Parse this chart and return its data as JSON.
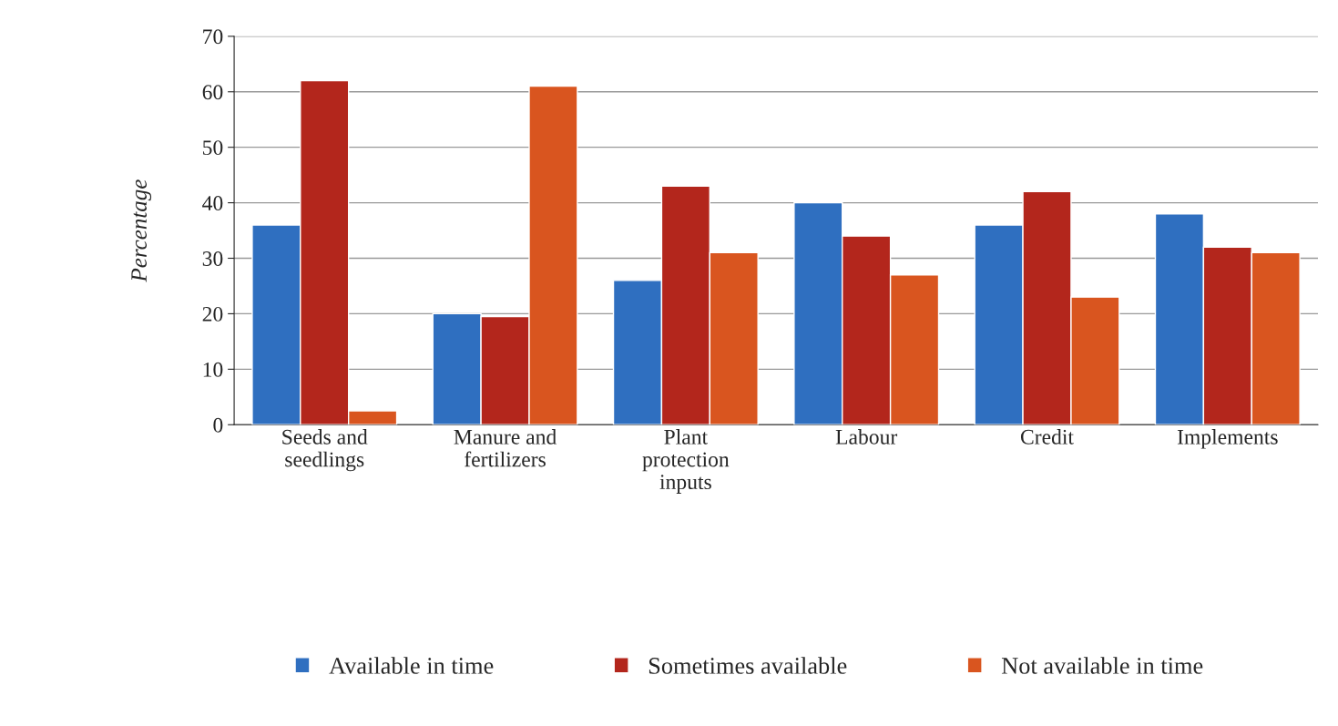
{
  "chart_data": {
    "type": "bar",
    "ylabel": "Percentage",
    "categories": [
      "Seeds and\nseedlings",
      "Manure and\nfertilizers",
      "Plant\nprotection\ninputs",
      "Labour",
      "Credit",
      "Implements"
    ],
    "series": [
      {
        "name": "Available in time",
        "color": "#2f6fc0",
        "values": [
          36,
          20,
          26,
          40,
          36,
          38
        ]
      },
      {
        "name": "Sometimes available",
        "color": "#b3261c",
        "values": [
          62,
          19.5,
          43,
          34,
          42,
          32
        ]
      },
      {
        "name": "Not available in time",
        "color": "#d9551f",
        "values": [
          2.5,
          61,
          31,
          27,
          23,
          31
        ]
      }
    ],
    "ylim": [
      0,
      70
    ],
    "yticks": [
      0,
      10,
      20,
      30,
      40,
      50,
      60,
      70
    ],
    "grid": "y",
    "legend": "bottom"
  }
}
